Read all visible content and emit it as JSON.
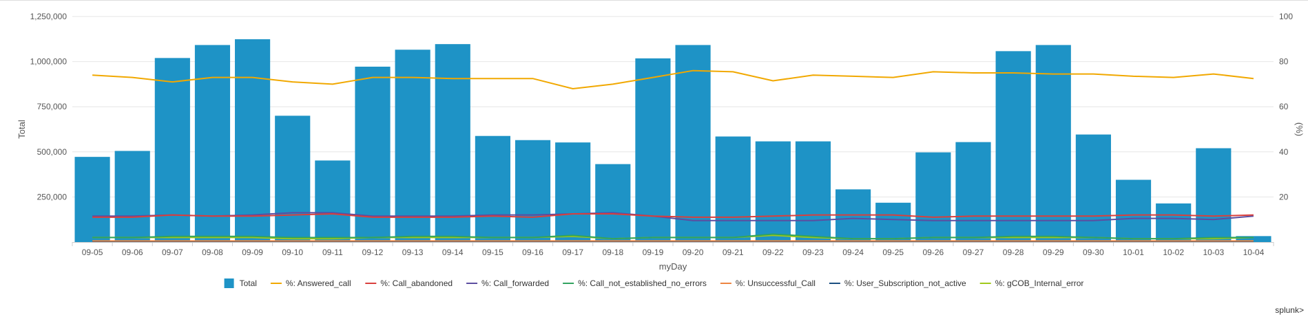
{
  "chart_data": {
    "type": "bar",
    "title": "",
    "xlabel": "myDay",
    "ylabel": "Total",
    "y2label": "(%)",
    "ylim": [
      0,
      1250000
    ],
    "y2lim": [
      0,
      100
    ],
    "yticks": [
      "1,250,000",
      "1,000,000",
      "750,000",
      "500,000",
      "250,000"
    ],
    "y2ticks": [
      "100",
      "80",
      "60",
      "40",
      "20"
    ],
    "grid": true,
    "legend": "bottom",
    "brand": "splunk>",
    "categories": [
      "09-05",
      "09-06",
      "09-07",
      "09-08",
      "09-09",
      "09-10",
      "09-11",
      "09-12",
      "09-13",
      "09-14",
      "09-15",
      "09-16",
      "09-17",
      "09-18",
      "09-19",
      "09-20",
      "09-21",
      "09-22",
      "09-23",
      "09-24",
      "09-25",
      "09-26",
      "09-27",
      "09-28",
      "09-29",
      "09-30",
      "10-01",
      "10-02",
      "10-03",
      "10-04"
    ],
    "bar_series": {
      "name": "Total",
      "color": "#1e93c6",
      "values": [
        472000,
        505000,
        1020000,
        1092000,
        1124000,
        700000,
        452000,
        972000,
        1066000,
        1097000,
        588000,
        565000,
        552000,
        432000,
        1018000,
        1092000,
        585000,
        558000,
        558000,
        292000,
        218000,
        497000,
        554000,
        1058000,
        1092000,
        596000,
        345000,
        214000,
        520000,
        33000
      ]
    },
    "line_series": [
      {
        "name": "%: Answered_call",
        "color": "#f1a800",
        "values": [
          74,
          73,
          71,
          73,
          73,
          71,
          70,
          73,
          73,
          72.5,
          72.5,
          72.5,
          68,
          70,
          73,
          76,
          75.5,
          71.5,
          74,
          73.5,
          73,
          75.5,
          75,
          75,
          74.5,
          74.5,
          73.5,
          73,
          74.5,
          72.5
        ]
      },
      {
        "name": "%: Call_abandoned",
        "color": "#d93f3c",
        "values": [
          11,
          11,
          12,
          11.5,
          11.5,
          12,
          12.5,
          11,
          11,
          11,
          11.5,
          11,
          12.5,
          12.5,
          11.5,
          11,
          11,
          11.5,
          12,
          12,
          12,
          11,
          11.5,
          11.5,
          11.5,
          11.5,
          12,
          12,
          11.5,
          12
        ]
      },
      {
        "name": "%: Call_forwarded",
        "color": "#5b4da0",
        "values": [
          11.5,
          11.5,
          12,
          11.5,
          12,
          13,
          13,
          11.5,
          11.5,
          11.5,
          12,
          12,
          12.5,
          13,
          11.5,
          9.5,
          9.5,
          9.5,
          9.5,
          10.5,
          10,
          9.5,
          9.5,
          9.5,
          9.5,
          9.5,
          10.5,
          10.5,
          10,
          11.5
        ]
      },
      {
        "name": "%: Call_not_established_no_errors",
        "color": "#31a35f",
        "values": [
          2,
          2,
          2.5,
          2.5,
          2.5,
          2,
          2,
          2,
          2.5,
          2.5,
          2,
          2,
          3,
          1.5,
          2,
          2,
          2,
          3.5,
          2.5,
          1.5,
          1.5,
          2,
          2,
          2.5,
          2.5,
          2,
          1.5,
          1.5,
          2,
          2
        ]
      },
      {
        "name": "%: Unsuccessful_Call",
        "color": "#ed8440",
        "values": [
          0.5,
          0.5,
          0.5,
          0.5,
          0.5,
          0.5,
          0.5,
          0.5,
          0.5,
          0.5,
          0.5,
          0.5,
          0.5,
          0.5,
          0.5,
          0.5,
          0.5,
          0.5,
          0.5,
          0.5,
          0.5,
          0.5,
          0.5,
          0.5,
          0.5,
          0.5,
          0.5,
          0.5,
          0.5,
          0.5
        ]
      },
      {
        "name": "%: User_Subscription_not_active",
        "color": "#1a4e80",
        "values": [
          0.3,
          0.3,
          0.3,
          0.3,
          0.3,
          0.3,
          0.3,
          0.3,
          0.3,
          0.3,
          0.3,
          0.3,
          0.3,
          0.3,
          0.3,
          0.3,
          0.3,
          0.3,
          0.3,
          0.3,
          0.3,
          0.3,
          0.3,
          0.3,
          0.3,
          0.3,
          0.3,
          0.3,
          0.3,
          0.3
        ]
      },
      {
        "name": "%: gCOB_Internal_error",
        "color": "#a0c91a",
        "values": [
          2,
          2,
          2,
          2,
          2,
          1.5,
          1.5,
          2,
          2,
          2,
          2,
          2,
          2.5,
          1.5,
          2,
          2,
          2,
          3,
          2,
          1.5,
          1.5,
          2,
          2,
          2,
          2,
          2,
          1.5,
          1.5,
          1.5,
          2
        ]
      }
    ]
  }
}
